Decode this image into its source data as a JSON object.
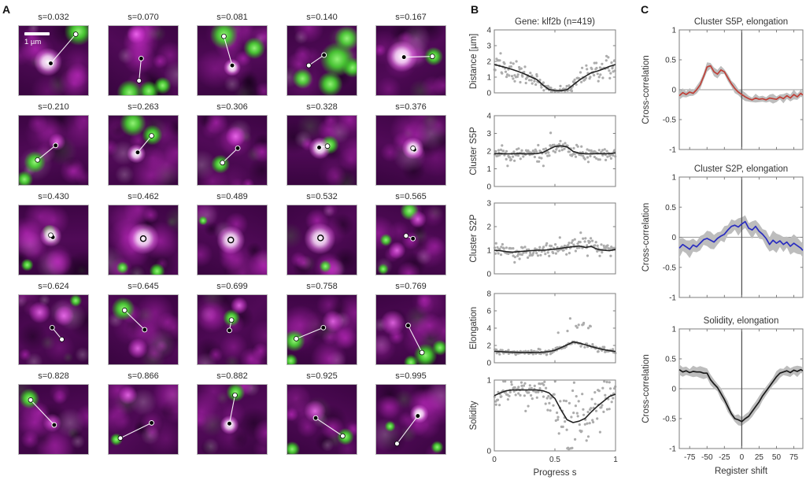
{
  "panel_a": {
    "label": "A",
    "scalebar_label": "1 µm",
    "tiles": [
      {
        "label": "s=0.032",
        "d1": [
          46,
          54
        ],
        "d2": [
          82,
          12
        ],
        "greens": [
          [
            86,
            8,
            20
          ]
        ],
        "core": [
          42,
          52,
          20
        ],
        "scalebar": true
      },
      {
        "label": "s=0.070",
        "d1": [
          47,
          47
        ],
        "d2": [
          44,
          79
        ],
        "greens": [
          [
            30,
            96,
            18
          ],
          [
            58,
            94,
            14
          ],
          [
            78,
            86,
            12
          ]
        ],
        "pinks": [
          [
            40,
            12,
            13
          ]
        ]
      },
      {
        "label": "s=0.081",
        "d1": [
          50,
          57
        ],
        "d2": [
          38,
          15
        ],
        "greens": [
          [
            38,
            13,
            20
          ],
          [
            82,
            32,
            15
          ]
        ],
        "core": [
          50,
          60,
          12
        ]
      },
      {
        "label": "s=0.140",
        "d1": [
          53,
          42
        ],
        "d2": [
          31,
          57
        ],
        "greens": [
          [
            22,
            76,
            14
          ],
          [
            72,
            48,
            24
          ],
          [
            86,
            18,
            18
          ],
          [
            62,
            84,
            18
          ],
          [
            94,
            60,
            14
          ]
        ]
      },
      {
        "label": "s=0.167",
        "d1": [
          40,
          45
        ],
        "d2": [
          81,
          44
        ],
        "greens": [
          [
            83,
            44,
            13
          ]
        ],
        "core": [
          37,
          44,
          22
        ]
      },
      {
        "label": "s=0.210",
        "d1": [
          53,
          43
        ],
        "d2": [
          27,
          64
        ],
        "greens": [
          [
            23,
            67,
            15
          ],
          [
            8,
            92,
            12
          ]
        ],
        "pinks": [
          [
            55,
            38,
            12
          ]
        ]
      },
      {
        "label": "s=0.263",
        "d1": [
          42,
          53
        ],
        "d2": [
          62,
          29
        ],
        "greens": [
          [
            35,
            11,
            19
          ],
          [
            63,
            28,
            14
          ]
        ],
        "core": [
          40,
          55,
          13
        ]
      },
      {
        "label": "s=0.306",
        "d1": [
          58,
          47
        ],
        "d2": [
          36,
          68
        ],
        "greens": [
          [
            33,
            70,
            13
          ]
        ],
        "pinks": [
          [
            55,
            30,
            14
          ]
        ]
      },
      {
        "label": "s=0.328",
        "d1": [
          46,
          46
        ],
        "d2": [
          58,
          44
        ],
        "greens": [
          [
            61,
            42,
            13
          ]
        ],
        "core": [
          47,
          47,
          15
        ]
      },
      {
        "label": "s=0.376",
        "d1": [
          55,
          49
        ],
        "d2": [
          53,
          47
        ],
        "core": [
          53,
          47,
          16
        ]
      },
      {
        "label": "s=0.430",
        "d1": [
          49,
          46
        ],
        "d2": [
          46,
          43
        ],
        "core": [
          46,
          44,
          16
        ],
        "greens": [
          [
            44,
            38,
            10
          ],
          [
            12,
            86,
            9
          ]
        ]
      },
      {
        "label": "s=0.462",
        "single": [
          50,
          48
        ],
        "core": [
          50,
          48,
          22
        ],
        "greens": [
          [
            20,
            90,
            9
          ],
          [
            70,
            95,
            11
          ]
        ]
      },
      {
        "label": "s=0.489",
        "single": [
          48,
          50
        ],
        "core": [
          48,
          50,
          20
        ],
        "greens": [
          [
            8,
            22,
            7
          ]
        ]
      },
      {
        "label": "s=0.532",
        "single": [
          48,
          47
        ],
        "core": [
          47,
          48,
          22
        ],
        "greens": [
          [
            55,
            88,
            9
          ]
        ]
      },
      {
        "label": "s=0.565",
        "d1": [
          53,
          48
        ],
        "d2": [
          43,
          44
        ],
        "greens": [
          [
            48,
            8,
            13
          ],
          [
            10,
            92,
            8
          ],
          [
            14,
            50,
            9
          ]
        ],
        "pinks": [
          [
            60,
            20,
            12
          ],
          [
            30,
            65,
            12
          ]
        ]
      },
      {
        "label": "s=0.624",
        "d1": [
          48,
          47
        ],
        "d2": [
          62,
          64
        ],
        "grayish": true,
        "greens": [
          [
            82,
            8,
            9
          ]
        ],
        "pinks": [
          [
            30,
            25,
            16
          ],
          [
            65,
            30,
            14
          ]
        ]
      },
      {
        "label": "s=0.645",
        "d1": [
          52,
          50
        ],
        "d2": [
          23,
          22
        ],
        "greens": [
          [
            21,
            20,
            17
          ]
        ],
        "pinks": [
          [
            42,
            77,
            14
          ]
        ]
      },
      {
        "label": "s=0.699",
        "d1": [
          46,
          51
        ],
        "d2": [
          49,
          36
        ],
        "greens": [
          [
            49,
            33,
            12
          ]
        ],
        "pinks": [
          [
            60,
            15,
            12
          ]
        ]
      },
      {
        "label": "s=0.758",
        "d1": [
          52,
          47
        ],
        "d2": [
          13,
          63
        ],
        "greens": [
          [
            10,
            66,
            15
          ],
          [
            5,
            95,
            10
          ]
        ],
        "pinks": [
          [
            66,
            38,
            16
          ]
        ]
      },
      {
        "label": "s=0.769",
        "d1": [
          46,
          44
        ],
        "d2": [
          66,
          83
        ],
        "greens": [
          [
            71,
            87,
            17
          ],
          [
            92,
            76,
            11
          ],
          [
            50,
            97,
            10
          ]
        ],
        "pinks": [
          [
            24,
            40,
            18
          ]
        ]
      },
      {
        "label": "s=0.828",
        "d1": [
          51,
          58
        ],
        "d2": [
          17,
          22
        ],
        "greens": [
          [
            15,
            20,
            14
          ]
        ],
        "pinks": [
          [
            48,
            55,
            13
          ]
        ]
      },
      {
        "label": "s=0.866",
        "d1": [
          62,
          55
        ],
        "d2": [
          17,
          77
        ],
        "greens": [
          [
            11,
            79,
            9
          ]
        ],
        "pinks": [
          [
            28,
            15,
            13
          ]
        ]
      },
      {
        "label": "s=0.882",
        "d1": [
          46,
          56
        ],
        "d2": [
          54,
          15
        ],
        "greens": [
          [
            55,
            11,
            13
          ]
        ],
        "core": [
          46,
          58,
          13
        ]
      },
      {
        "label": "s=0.925",
        "d1": [
          41,
          48
        ],
        "d2": [
          80,
          74
        ],
        "greens": [
          [
            84,
            75,
            12
          ],
          [
            7,
            93,
            11
          ]
        ],
        "pinks": [
          [
            40,
            38,
            15
          ]
        ]
      },
      {
        "label": "s=0.995",
        "d1": [
          60,
          45
        ],
        "d2": [
          30,
          85
        ],
        "core": [
          62,
          42,
          13
        ],
        "greens": [
          [
            88,
            90,
            9
          ],
          [
            20,
            60,
            8
          ]
        ]
      }
    ]
  },
  "panel_b": {
    "label": "B"
  },
  "panel_c": {
    "label": "C"
  },
  "chart_data": [
    {
      "panel": "B",
      "type": "scatter",
      "title": "Gene: klf2b (n=419)",
      "ylabel": "Distance [µm]",
      "ylim": [
        0,
        4
      ],
      "yticks": [
        0,
        1,
        2,
        3,
        4
      ],
      "x": [
        0,
        0.05,
        0.1,
        0.15,
        0.2,
        0.25,
        0.3,
        0.35,
        0.4,
        0.45,
        0.5,
        0.55,
        0.6,
        0.65,
        0.7,
        0.75,
        0.8,
        0.85,
        0.9,
        0.95,
        1
      ],
      "trend": [
        1.8,
        1.7,
        1.6,
        1.48,
        1.35,
        1.2,
        1.02,
        0.85,
        0.5,
        0.22,
        0.15,
        0.14,
        0.2,
        0.5,
        0.8,
        1.05,
        1.28,
        1.38,
        1.52,
        1.68,
        1.8
      ],
      "noise": {
        "base": 0.07,
        "prop": 0.2
      }
    },
    {
      "panel": "B",
      "type": "scatter",
      "ylabel": "Cluster S5P",
      "ylim": [
        0,
        4
      ],
      "yticks": [
        0,
        1,
        2,
        3,
        4
      ],
      "x": [
        0,
        0.05,
        0.1,
        0.15,
        0.2,
        0.25,
        0.3,
        0.35,
        0.4,
        0.45,
        0.5,
        0.55,
        0.6,
        0.65,
        0.7,
        0.75,
        0.8,
        0.85,
        0.9,
        0.95,
        1
      ],
      "trend": [
        1.85,
        1.86,
        1.84,
        1.85,
        1.86,
        1.84,
        1.85,
        1.86,
        1.92,
        2.1,
        2.26,
        2.3,
        2.24,
        1.98,
        1.88,
        1.85,
        1.84,
        1.86,
        1.85,
        1.86,
        1.9
      ],
      "noise": {
        "base": 0.2,
        "out": {
          "range": [
            0.42,
            0.62
          ],
          "p": 0.05,
          "mag": 1.0
        }
      }
    },
    {
      "panel": "B",
      "type": "scatter",
      "ylabel": "Cluster S2P",
      "ylim": [
        0,
        3
      ],
      "yticks": [
        0,
        1,
        2,
        3
      ],
      "x": [
        0,
        0.05,
        0.1,
        0.15,
        0.2,
        0.25,
        0.3,
        0.35,
        0.4,
        0.45,
        0.5,
        0.55,
        0.6,
        0.65,
        0.7,
        0.75,
        0.8,
        0.85,
        0.9,
        0.95,
        1
      ],
      "trend": [
        1.0,
        0.98,
        0.94,
        0.92,
        0.94,
        0.96,
        0.98,
        1.0,
        1.0,
        1.02,
        1.05,
        1.08,
        1.12,
        1.15,
        1.18,
        1.12,
        1.16,
        1.04,
        1.0,
        0.98,
        1.04
      ],
      "noise": {
        "base": 0.15,
        "out": {
          "range": [
            0.45,
            0.75
          ],
          "p": 0.04,
          "mag": 0.6
        }
      }
    },
    {
      "panel": "B",
      "type": "scatter",
      "ylabel": "Elongation",
      "ylim": [
        0,
        8
      ],
      "yticks": [
        0,
        2,
        4,
        6,
        8
      ],
      "x": [
        0,
        0.05,
        0.1,
        0.15,
        0.2,
        0.25,
        0.3,
        0.35,
        0.4,
        0.45,
        0.5,
        0.55,
        0.6,
        0.65,
        0.7,
        0.75,
        0.8,
        0.85,
        0.9,
        0.95,
        1
      ],
      "trend": [
        1.32,
        1.28,
        1.25,
        1.22,
        1.2,
        1.18,
        1.2,
        1.18,
        1.22,
        1.28,
        1.45,
        1.75,
        2.05,
        2.4,
        2.28,
        2.08,
        1.88,
        1.68,
        1.52,
        1.4,
        1.3
      ],
      "noise": {
        "base": 0.14,
        "out": {
          "range": [
            0.52,
            0.85
          ],
          "p": 0.25,
          "mag": 2.8
        }
      }
    },
    {
      "panel": "B",
      "type": "scatter",
      "ylabel": "Solidity",
      "ylim": [
        0,
        1
      ],
      "yticks": [
        0,
        1
      ],
      "xlabel": "Progress s",
      "xticks": [
        0,
        0.5,
        1
      ],
      "x": [
        0,
        0.05,
        0.1,
        0.15,
        0.2,
        0.25,
        0.3,
        0.35,
        0.4,
        0.45,
        0.5,
        0.55,
        0.6,
        0.65,
        0.7,
        0.75,
        0.8,
        0.85,
        0.9,
        0.95,
        1
      ],
      "trend": [
        0.78,
        0.82,
        0.85,
        0.86,
        0.86,
        0.86,
        0.86,
        0.86,
        0.85,
        0.82,
        0.74,
        0.58,
        0.44,
        0.4,
        0.42,
        0.46,
        0.55,
        0.63,
        0.7,
        0.77,
        0.8
      ],
      "noise": {
        "base": 0.06,
        "dip": 0.5,
        "out": {
          "range": [
            0.1,
            0.95
          ],
          "p": 0.1,
          "mag": -0.3
        }
      }
    },
    {
      "panel": "C",
      "type": "line",
      "title": "Cluster S5P, elongation",
      "ylabel": "Cross-correlation",
      "color": "#bf4038",
      "band": 0.05,
      "ylim": [
        -1,
        1
      ],
      "yticks": [
        -1,
        -0.5,
        0,
        0.5,
        1
      ],
      "xlim": [
        -90,
        88
      ],
      "x": [
        -90,
        -85,
        -80,
        -75,
        -70,
        -65,
        -60,
        -55,
        -50,
        -45,
        -40,
        -35,
        -30,
        -25,
        -20,
        -15,
        -10,
        -5,
        0,
        5,
        10,
        15,
        20,
        25,
        30,
        35,
        40,
        45,
        50,
        55,
        60,
        65,
        70,
        75,
        80,
        85,
        88
      ],
      "y": [
        -0.1,
        -0.05,
        -0.08,
        -0.04,
        -0.06,
        0.0,
        0.08,
        0.22,
        0.38,
        0.4,
        0.3,
        0.26,
        0.33,
        0.3,
        0.2,
        0.1,
        0.02,
        -0.04,
        -0.08,
        -0.12,
        -0.15,
        -0.17,
        -0.14,
        -0.16,
        -0.15,
        -0.17,
        -0.14,
        -0.15,
        -0.16,
        -0.12,
        -0.15,
        -0.1,
        -0.14,
        -0.08,
        -0.12,
        -0.06,
        -0.09
      ]
    },
    {
      "panel": "C",
      "type": "line",
      "title": "Cluster S2P, elongation",
      "ylabel": "Cross-correlation",
      "color": "#2a2dc0",
      "band": 0.1,
      "ylim": [
        -1,
        1
      ],
      "yticks": [
        -1,
        -0.5,
        0,
        0.5,
        1
      ],
      "xlim": [
        -90,
        88
      ],
      "x": [
        -90,
        -85,
        -80,
        -75,
        -70,
        -65,
        -60,
        -55,
        -50,
        -45,
        -40,
        -35,
        -30,
        -25,
        -20,
        -15,
        -10,
        -5,
        0,
        5,
        10,
        15,
        20,
        25,
        30,
        35,
        40,
        45,
        50,
        55,
        60,
        65,
        70,
        75,
        80,
        85,
        88
      ],
      "y": [
        -0.18,
        -0.12,
        -0.16,
        -0.2,
        -0.13,
        -0.16,
        -0.1,
        -0.04,
        -0.02,
        -0.05,
        -0.08,
        -0.02,
        0.02,
        0.05,
        0.12,
        0.18,
        0.2,
        0.17,
        0.22,
        0.26,
        0.15,
        0.12,
        0.18,
        0.1,
        0.05,
        -0.02,
        -0.12,
        -0.05,
        -0.1,
        -0.06,
        -0.12,
        -0.08,
        -0.15,
        -0.1,
        -0.14,
        -0.18,
        -0.22
      ]
    },
    {
      "panel": "C",
      "type": "line",
      "title": "Solidity, elongation",
      "ylabel": "Cross-correlation",
      "color": "#1a1a1a",
      "band": 0.06,
      "xlabel": "Register shift",
      "xticks": [
        -75,
        -50,
        -25,
        0,
        25,
        50,
        75
      ],
      "ylim": [
        -1,
        1
      ],
      "yticks": [
        -1,
        -0.5,
        0,
        0.5,
        1
      ],
      "xlim": [
        -90,
        88
      ],
      "x": [
        -90,
        -85,
        -80,
        -75,
        -70,
        -65,
        -60,
        -55,
        -50,
        -45,
        -40,
        -35,
        -30,
        -25,
        -20,
        -15,
        -10,
        -5,
        0,
        5,
        10,
        15,
        20,
        25,
        30,
        35,
        40,
        45,
        50,
        55,
        60,
        65,
        70,
        75,
        80,
        85,
        88
      ],
      "y": [
        0.32,
        0.28,
        0.3,
        0.27,
        0.29,
        0.28,
        0.28,
        0.26,
        0.26,
        0.15,
        0.08,
        0.02,
        -0.08,
        -0.18,
        -0.3,
        -0.42,
        -0.5,
        -0.52,
        -0.55,
        -0.5,
        -0.46,
        -0.38,
        -0.3,
        -0.22,
        -0.12,
        -0.04,
        0.04,
        0.12,
        0.2,
        0.26,
        0.28,
        0.3,
        0.27,
        0.31,
        0.29,
        0.32,
        0.3
      ]
    }
  ],
  "style_colors": {
    "scatter": "#9e9e9e",
    "trend": "#222222",
    "band": "#bdbdbd",
    "frame": "#7d7d7d",
    "zero_h": "#9a9a9a",
    "zero_v": "#4a4a4a"
  }
}
